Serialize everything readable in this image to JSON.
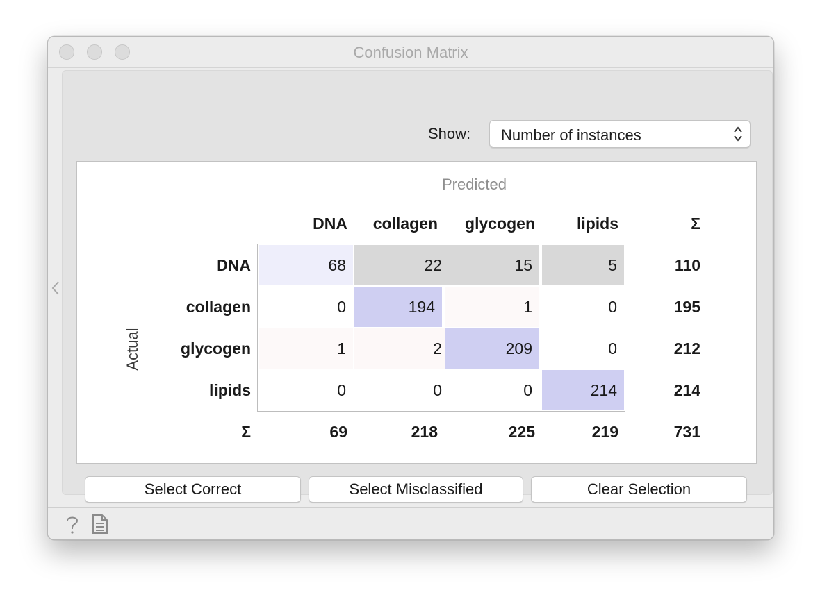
{
  "window": {
    "title": "Confusion Matrix"
  },
  "controls": {
    "show_label": "Show:",
    "show_value": "Number of instances"
  },
  "matrix": {
    "predicted_label": "Predicted",
    "actual_label": "Actual",
    "sum_symbol": "Σ",
    "classes": [
      "DNA",
      "collagen",
      "glycogen",
      "lipids"
    ],
    "cells": [
      [
        "68",
        "22",
        "15",
        "5"
      ],
      [
        "0",
        "194",
        "1",
        "0"
      ],
      [
        "1",
        "2",
        "209",
        "0"
      ],
      [
        "0",
        "0",
        "0",
        "214"
      ]
    ],
    "row_totals": [
      "110",
      "195",
      "212",
      "214"
    ],
    "col_totals": [
      "69",
      "218",
      "225",
      "219"
    ],
    "grand_total": "731",
    "cell_colors": [
      [
        "#eeeefb",
        "#d8d8d8",
        "#d8d8d8",
        "#d8d8d8"
      ],
      [
        "#ffffff",
        "#cfcff2",
        "#fdf9f9",
        "#ffffff"
      ],
      [
        "#fdf9f9",
        "#fdf8f8",
        "#cfcff2",
        "#ffffff"
      ],
      [
        "#ffffff",
        "#ffffff",
        "#ffffff",
        "#cfcff2"
      ]
    ]
  },
  "buttons": {
    "select_correct": "Select Correct",
    "select_misclassified": "Select Misclassified",
    "clear_selection": "Clear Selection"
  },
  "icons": {
    "help": "help-icon",
    "report": "report-icon",
    "collapse": "chevron-left-icon"
  }
}
